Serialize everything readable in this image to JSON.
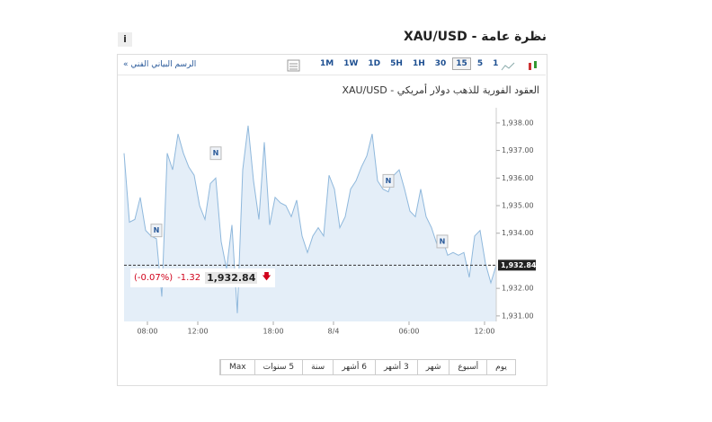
{
  "header": {
    "title": "نظرة عامة - XAU/USD",
    "info": "i"
  },
  "toolbar": {
    "link": "الرسم البياني الفني »",
    "intervals": [
      "1M",
      "1W",
      "1D",
      "5H",
      "1H",
      "30",
      "15",
      "5",
      "1"
    ],
    "selected": "15"
  },
  "chart_data": {
    "type": "line",
    "title": "العقود الفورية للذهب دولار أمريكي - XAU/USD",
    "color": "#8fb8dc",
    "fill": "#e4eef8",
    "values": [
      1936.9,
      1934.4,
      1934.5,
      1935.3,
      1934.1,
      1933.9,
      1933.8,
      1931.7,
      1936.9,
      1936.3,
      1937.6,
      1936.9,
      1936.4,
      1936.1,
      1935.0,
      1934.5,
      1935.8,
      1936.0,
      1933.7,
      1932.7,
      1934.3,
      1931.1,
      1936.3,
      1937.9,
      1935.9,
      1934.5,
      1937.3,
      1934.3,
      1935.3,
      1935.1,
      1935.0,
      1934.6,
      1935.2,
      1933.9,
      1933.3,
      1933.9,
      1934.2,
      1933.9,
      1936.1,
      1935.6,
      1934.2,
      1934.6,
      1935.6,
      1935.9,
      1936.4,
      1936.8,
      1937.6,
      1935.9,
      1935.6,
      1935.5,
      1936.1,
      1936.3,
      1935.6,
      1934.8,
      1934.6,
      1935.6,
      1934.6,
      1934.2,
      1933.6,
      1933.8,
      1933.2,
      1933.3,
      1933.2,
      1933.3,
      1932.4,
      1933.9,
      1934.1,
      1932.9,
      1932.2,
      1932.84
    ],
    "xlim": [
      0,
      69
    ],
    "xticks": [
      {
        "value": 4.33,
        "label": "08:00"
      },
      {
        "value": 13.67,
        "label": "12:00"
      },
      {
        "value": 27.67,
        "label": "18:00"
      },
      {
        "value": 38.83,
        "label": "8/4"
      },
      {
        "value": 52.83,
        "label": "06:00"
      },
      {
        "value": 66.83,
        "label": "12:00"
      }
    ],
    "ylim": [
      1930.8,
      1938.55
    ],
    "yticks": [
      {
        "value": 1931,
        "label": "1,931.00"
      },
      {
        "value": 1932,
        "label": "1,932.00"
      },
      {
        "value": 1934,
        "label": "1,934.00"
      },
      {
        "value": 1935,
        "label": "1,935.00"
      },
      {
        "value": 1936,
        "label": "1,936.00"
      },
      {
        "value": 1937,
        "label": "1,937.00"
      },
      {
        "value": 1938,
        "label": "1,938.00"
      }
    ],
    "last": {
      "value": 1932.84,
      "label": "1,932.84"
    },
    "change": -1.32,
    "change_pct": {
      "value": -0.07,
      "label": "(-0.07%)"
    },
    "annotations": [
      {
        "label": "N",
        "x": 6,
        "y": 1934.1
      },
      {
        "label": "N",
        "x": 17,
        "y": 1936.9
      },
      {
        "label": "N",
        "x": 49,
        "y": 1935.9
      },
      {
        "label": "N",
        "x": 59,
        "y": 1933.7
      }
    ]
  },
  "ranges": [
    "يوم",
    "أسبوع",
    "شهر",
    "3 أشهر",
    "6 أشهر",
    "سنة",
    "5 سنوات",
    "Max"
  ]
}
